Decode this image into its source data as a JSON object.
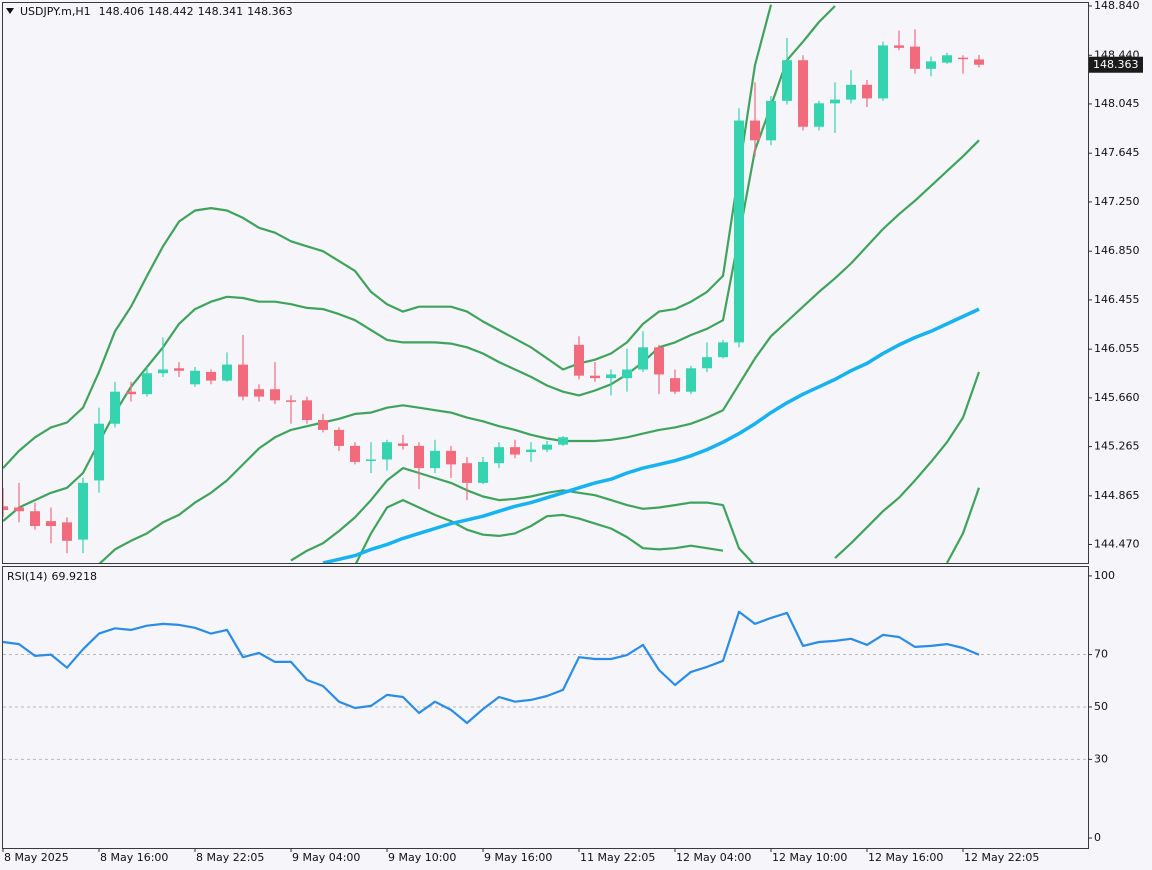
{
  "chart_data": [
    {
      "type": "candlestick",
      "title": "USDJPY.m,H1",
      "categories": [
        "8 May 2025",
        null,
        null,
        null,
        null,
        null,
        "8 May 16:00",
        null,
        null,
        null,
        null,
        null,
        "8 May 22:05",
        null,
        null,
        null,
        null,
        null,
        "9 May 04:00",
        null,
        null,
        null,
        null,
        null,
        "9 May 10:00",
        null,
        null,
        null,
        null,
        null,
        "9 May 16:00",
        null,
        null,
        null,
        null,
        null,
        "11 May 22:05",
        null,
        null,
        null,
        null,
        null,
        "12 May 04:00",
        null,
        null,
        null,
        null,
        null,
        "12 May 10:00",
        null,
        null,
        null,
        null,
        null,
        "12 May 16:00",
        null,
        null,
        null,
        null,
        null,
        "12 May 22:05",
        null
      ],
      "open": [
        144.78,
        144.77,
        144.74,
        144.66,
        144.65,
        144.51,
        144.99,
        145.45,
        145.71,
        145.69,
        145.86,
        145.9,
        145.77,
        145.87,
        145.8,
        145.93,
        145.73,
        145.73,
        145.64,
        145.64,
        145.48,
        145.4,
        145.27,
        145.15,
        145.16,
        145.29,
        145.27,
        145.09,
        145.23,
        145.13,
        144.97,
        145.13,
        145.26,
        145.22,
        145.24,
        145.28,
        146.09,
        145.84,
        145.82,
        145.82,
        145.89,
        146.07,
        145.82,
        145.71,
        145.9,
        145.99,
        146.11,
        147.91,
        147.75,
        148.07,
        148.4,
        147.86,
        148.05,
        148.08,
        148.2,
        148.09,
        148.52,
        148.51,
        148.33,
        148.38,
        148.42,
        148.406
      ],
      "high": [
        144.93,
        144.97,
        144.81,
        144.77,
        144.69,
        145.01,
        145.58,
        145.79,
        145.79,
        145.91,
        146.15,
        145.95,
        145.91,
        145.89,
        146.03,
        146.17,
        145.77,
        145.95,
        145.68,
        145.67,
        145.53,
        145.42,
        145.3,
        145.3,
        145.32,
        145.36,
        145.3,
        145.32,
        145.27,
        145.18,
        145.18,
        145.3,
        145.32,
        145.3,
        145.31,
        145.35,
        146.16,
        145.95,
        145.89,
        146.06,
        146.2,
        146.09,
        145.89,
        145.92,
        146.11,
        146.13,
        148.01,
        148.22,
        148.11,
        148.58,
        148.44,
        148.07,
        148.22,
        148.32,
        148.24,
        148.55,
        148.64,
        148.65,
        148.43,
        148.46,
        148.44,
        148.442
      ],
      "low": [
        144.69,
        144.65,
        144.59,
        144.48,
        144.4,
        144.4,
        144.89,
        145.42,
        145.63,
        145.67,
        145.83,
        145.83,
        145.75,
        145.77,
        145.79,
        145.64,
        145.63,
        145.61,
        145.45,
        145.45,
        145.38,
        145.23,
        145.12,
        145.05,
        145.07,
        145.24,
        144.92,
        145.05,
        145.01,
        144.83,
        144.96,
        145.09,
        145.17,
        145.14,
        145.22,
        145.27,
        145.81,
        145.79,
        145.68,
        145.71,
        145.87,
        145.69,
        145.69,
        145.69,
        145.87,
        145.98,
        146.07,
        147.62,
        147.71,
        148.04,
        147.83,
        147.83,
        147.81,
        148.05,
        148.02,
        148.07,
        148.48,
        148.29,
        148.27,
        148.37,
        148.29,
        148.341
      ],
      "close": [
        144.75,
        144.74,
        144.62,
        144.62,
        144.5,
        144.97,
        145.45,
        145.71,
        145.69,
        145.86,
        145.89,
        145.88,
        145.88,
        145.8,
        145.93,
        145.67,
        145.67,
        145.64,
        145.63,
        145.48,
        145.4,
        145.27,
        145.14,
        145.16,
        145.3,
        145.27,
        145.09,
        145.23,
        145.12,
        144.97,
        145.14,
        145.26,
        145.2,
        145.24,
        145.28,
        145.34,
        145.84,
        145.82,
        145.85,
        145.89,
        146.07,
        145.85,
        145.71,
        145.9,
        145.99,
        146.11,
        147.91,
        147.75,
        148.07,
        148.4,
        147.86,
        148.05,
        148.08,
        148.2,
        148.09,
        148.52,
        148.5,
        148.33,
        148.39,
        148.44,
        148.41,
        148.363
      ],
      "up_color": "#35d3b0",
      "down_color": "#f26b7d",
      "series": [
        {
          "color": "#3fa35c",
          "values": [
            145.09,
            145.23,
            145.34,
            145.42,
            145.46,
            145.58,
            145.87,
            146.2,
            146.4,
            146.65,
            146.89,
            147.09,
            147.18,
            147.2,
            147.18,
            147.12,
            147.04,
            147.0,
            146.93,
            146.89,
            146.85,
            146.77,
            146.69,
            146.52,
            146.42,
            146.36,
            146.4,
            146.4,
            146.4,
            146.36,
            146.28,
            146.21,
            146.14,
            146.07,
            145.98,
            145.89,
            145.94,
            145.97,
            146.02,
            146.11,
            146.26,
            146.36,
            146.38,
            146.44,
            146.52,
            146.65,
            147.5,
            148.36,
            148.85,
            null,
            null,
            null,
            null,
            null,
            null,
            null,
            null,
            null,
            null,
            null,
            null,
            null
          ]
        },
        {
          "color": "#3fa35c",
          "values": [
            144.66,
            144.77,
            144.83,
            144.89,
            144.93,
            145.05,
            145.3,
            145.54,
            145.75,
            145.91,
            146.07,
            146.26,
            146.38,
            146.44,
            146.48,
            146.47,
            146.44,
            146.44,
            146.42,
            146.39,
            146.38,
            146.34,
            146.29,
            146.21,
            146.13,
            146.11,
            146.11,
            146.11,
            146.1,
            146.07,
            146.02,
            145.95,
            145.89,
            145.83,
            145.76,
            145.71,
            145.68,
            145.72,
            145.77,
            145.85,
            145.95,
            146.07,
            146.11,
            146.17,
            146.22,
            146.29,
            146.97,
            147.67,
            148.03,
            148.4,
            148.55,
            148.71,
            148.84,
            null,
            null,
            null,
            null,
            null,
            null,
            null,
            null,
            null
          ]
        },
        {
          "color": "#3fa35c",
          "values": [
            null,
            null,
            null,
            null,
            null,
            null,
            144.31,
            144.43,
            144.5,
            144.56,
            144.65,
            144.71,
            144.81,
            144.89,
            144.99,
            145.12,
            145.25,
            145.34,
            145.4,
            145.43,
            145.46,
            145.49,
            145.53,
            145.54,
            145.58,
            145.6,
            145.58,
            145.56,
            145.54,
            145.5,
            145.47,
            145.43,
            145.4,
            145.36,
            145.33,
            145.31,
            145.31,
            145.31,
            145.32,
            145.34,
            145.37,
            145.4,
            145.42,
            145.45,
            145.5,
            145.56,
            145.77,
            145.98,
            146.16,
            146.28,
            146.4,
            146.52,
            146.63,
            146.75,
            146.89,
            147.03,
            147.15,
            147.26,
            147.38,
            147.5,
            147.62,
            147.75
          ]
        },
        {
          "color": "#3fa35c",
          "values": [
            null,
            null,
            null,
            null,
            null,
            null,
            null,
            null,
            null,
            null,
            null,
            null,
            null,
            null,
            null,
            null,
            null,
            null,
            144.34,
            144.42,
            144.48,
            144.58,
            144.69,
            144.83,
            144.99,
            145.09,
            145.05,
            145.01,
            144.97,
            144.91,
            144.86,
            144.83,
            144.84,
            144.86,
            144.89,
            144.91,
            144.89,
            144.87,
            144.83,
            144.79,
            144.76,
            144.77,
            144.79,
            144.81,
            144.81,
            144.79,
            144.44,
            144.3,
            null,
            null,
            null,
            null,
            144.36,
            144.48,
            144.61,
            144.74,
            144.85,
            144.99,
            145.14,
            145.3,
            145.5,
            145.87
          ]
        },
        {
          "color": "#3fa35c",
          "values": [
            null,
            null,
            null,
            null,
            null,
            null,
            null,
            null,
            null,
            null,
            null,
            null,
            null,
            null,
            null,
            null,
            null,
            null,
            null,
            null,
            null,
            null,
            144.3,
            144.56,
            144.77,
            144.83,
            144.77,
            144.71,
            144.66,
            144.59,
            144.55,
            144.54,
            144.56,
            144.62,
            144.7,
            144.71,
            144.68,
            144.64,
            144.6,
            144.53,
            144.44,
            144.43,
            144.44,
            144.46,
            144.44,
            144.42,
            null,
            null,
            null,
            null,
            null,
            null,
            null,
            null,
            null,
            null,
            null,
            null,
            null,
            144.32,
            144.56,
            144.93
          ]
        },
        {
          "color": "#16b2f2",
          "values": [
            null,
            null,
            null,
            null,
            null,
            null,
            null,
            null,
            null,
            null,
            null,
            null,
            null,
            null,
            null,
            null,
            null,
            null,
            null,
            null,
            144.32,
            144.35,
            144.38,
            144.43,
            144.47,
            144.52,
            144.56,
            144.6,
            144.64,
            144.67,
            144.7,
            144.74,
            144.78,
            144.81,
            144.85,
            144.89,
            144.93,
            144.97,
            145.0,
            145.05,
            145.09,
            145.12,
            145.15,
            145.19,
            145.24,
            145.3,
            145.37,
            145.45,
            145.54,
            145.62,
            145.69,
            145.75,
            145.81,
            145.88,
            145.94,
            146.02,
            146.09,
            146.15,
            146.2,
            146.26,
            146.32,
            146.38
          ]
        }
      ],
      "ylim": [
        144.32,
        148.864
      ],
      "yticks": [
        {
          "value": 148.84,
          "label": "148.840"
        },
        {
          "value": 148.44,
          "label": "148.440"
        },
        148.045,
        147.645,
        {
          "value": 147.25,
          "label": "147.250"
        },
        {
          "value": 146.85,
          "label": "146.850"
        },
        146.455,
        146.055,
        {
          "value": 145.66,
          "label": "145.660"
        },
        145.265,
        144.865,
        {
          "value": 144.47,
          "label": "144.470"
        }
      ]
    },
    {
      "type": "line",
      "title": "RSI(14)",
      "color": "#2b8ce6",
      "values": [
        74.8,
        74,
        69.5,
        70,
        65,
        72,
        78,
        80,
        79.4,
        81,
        81.7,
        81.3,
        80.2,
        78,
        79.4,
        69,
        70.6,
        67.2,
        67.2,
        60.3,
        58,
        52,
        49.6,
        50.4,
        54.6,
        53.8,
        47.7,
        52,
        48.9,
        43.9,
        49.2,
        53.8,
        52,
        52.7,
        54.2,
        56.5,
        69,
        68.3,
        68.3,
        69.8,
        73.7,
        64.1,
        58.4,
        63.4,
        65.3,
        67.6,
        86.3,
        81.7,
        84,
        85.9,
        73.3,
        74.8,
        75.2,
        76,
        73.7,
        77.5,
        76.7,
        72.9,
        73.3,
        74,
        72.5,
        69.9218
      ],
      "ylim": [
        -3.8,
        103.4
      ],
      "yticks": [
        0,
        30,
        50,
        70,
        100
      ],
      "levels": [
        30,
        50,
        70
      ]
    }
  ]
}
